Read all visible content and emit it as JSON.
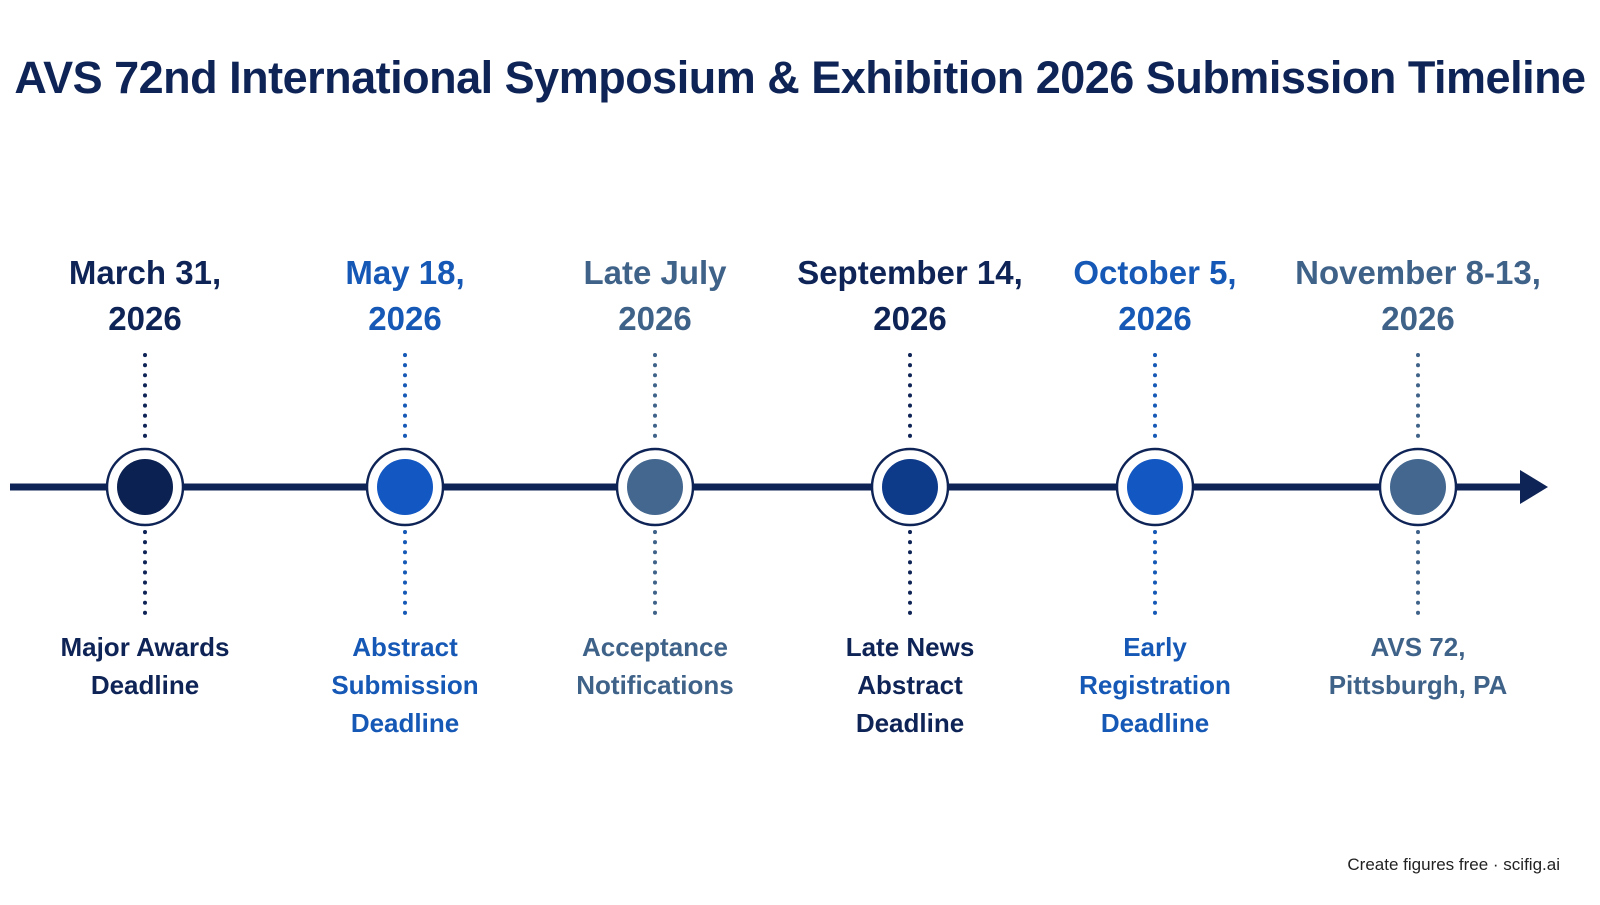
{
  "title": "AVS 72nd International Symposium & Exhibition 2026 Submission Timeline",
  "colors": {
    "axis": "#0f2456",
    "dark": "#0f2456",
    "blue": "#1558b5",
    "slate": "#3f6289",
    "node_dark": "#0b2152",
    "node_blue": "#1257c2",
    "node_slate": "#44678f",
    "node_navy": "#0e3a8a"
  },
  "milestones": [
    {
      "date": "March 31,\n2026",
      "label": "Major Awards\nDeadline",
      "tone": "dark",
      "node": "node_dark"
    },
    {
      "date": "May 18,\n2026",
      "label": "Abstract\nSubmission\nDeadline",
      "tone": "blue",
      "node": "node_blue"
    },
    {
      "date": "Late July\n2026",
      "label": "Acceptance\nNotifications",
      "tone": "slate",
      "node": "node_slate"
    },
    {
      "date": "September 14,\n2026",
      "label": "Late News\nAbstract\nDeadline",
      "tone": "dark",
      "node": "node_navy"
    },
    {
      "date": "October 5,\n2026",
      "label": "Early\nRegistration\nDeadline",
      "tone": "blue",
      "node": "node_blue"
    },
    {
      "date": "November 8-13,\n2026",
      "label": "AVS 72,\nPittsburgh, PA",
      "tone": "slate",
      "node": "node_slate"
    }
  ],
  "footer": "Create figures free · scifig.ai"
}
